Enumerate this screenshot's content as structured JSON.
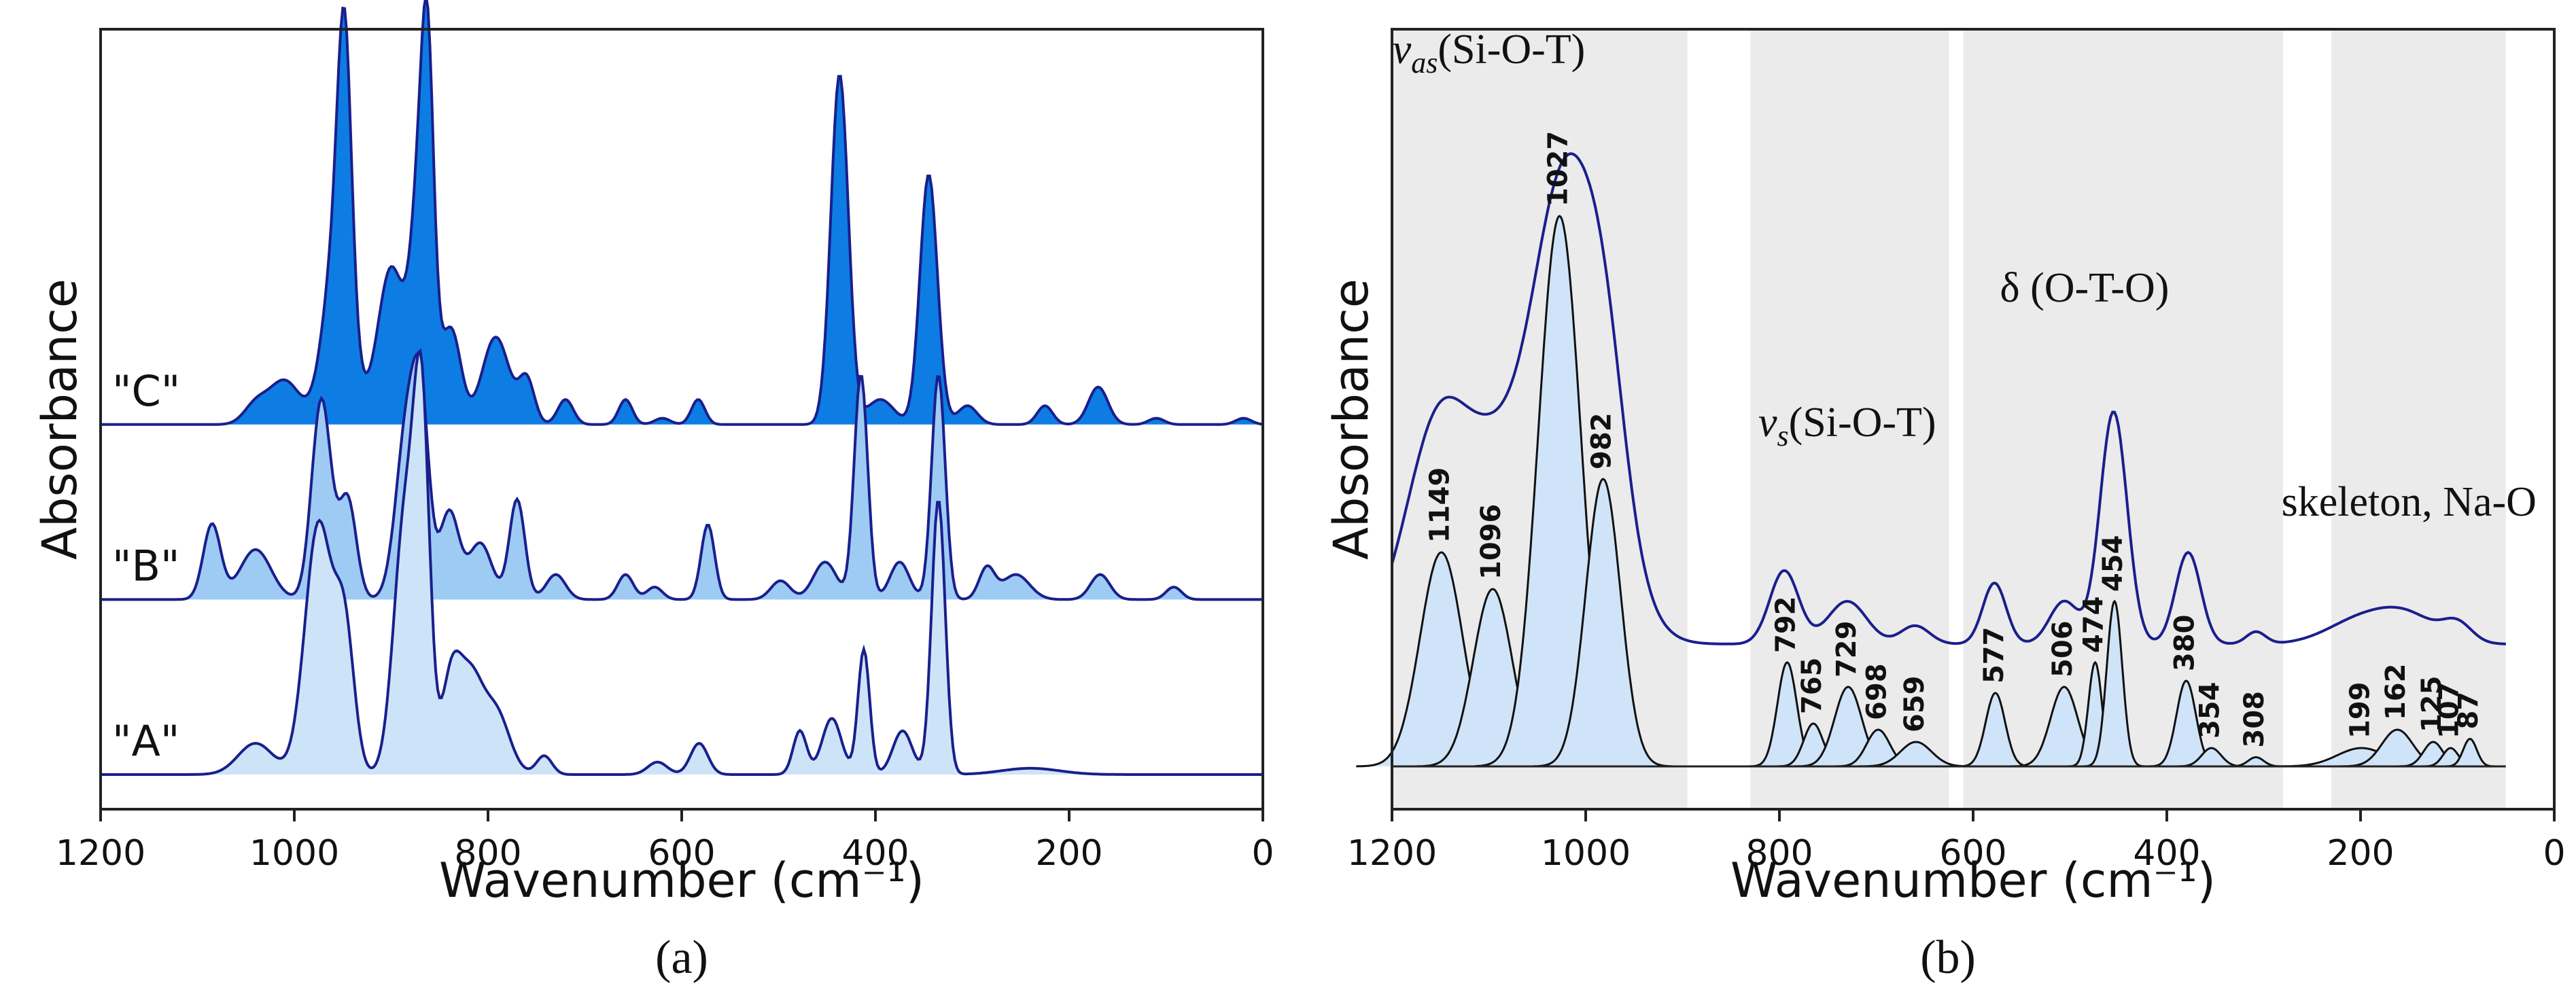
{
  "colors": {
    "line": "#1a1f8c",
    "fill_A": "#cde4f8",
    "fill_B": "#9ecbf4",
    "fill_C": "#0d7de3",
    "band": "#ebebeb",
    "fit_fill": "#cfe4f8"
  },
  "chart_data": [
    {
      "type": "line",
      "panel_label": "(a)",
      "xlabel": "Wavenumber (cm⁻¹)",
      "ylabel": "Absorbance",
      "xlim": [
        1200,
        0
      ],
      "xticks": [
        "1200",
        "1000",
        "800",
        "600",
        "400",
        "200",
        "0"
      ],
      "series": [
        {
          "name": "\"A\"",
          "label": "\"A\"",
          "baseline": 0,
          "fill": "fill_A",
          "peaks": [
            [
              1040,
              0.05,
              18
            ],
            [
              975,
              0.4,
              14
            ],
            [
              948,
              0.22,
              10
            ],
            [
              885,
              0.42,
              12
            ],
            [
              868,
              0.5,
              8
            ],
            [
              838,
              0.15,
              10
            ],
            [
              818,
              0.14,
              12
            ],
            [
              792,
              0.1,
              14
            ],
            [
              742,
              0.03,
              8
            ],
            [
              625,
              0.02,
              10
            ],
            [
              582,
              0.05,
              9
            ],
            [
              478,
              0.07,
              7
            ],
            [
              445,
              0.09,
              10
            ],
            [
              412,
              0.2,
              6
            ],
            [
              372,
              0.07,
              10
            ],
            [
              335,
              0.44,
              7
            ],
            [
              240,
              0.01,
              30
            ]
          ]
        },
        {
          "name": "\"B\"",
          "label": "\"B\"",
          "baseline": 0.28,
          "fill": "fill_B",
          "peaks": [
            [
              1085,
              0.12,
              9
            ],
            [
              1040,
              0.08,
              16
            ],
            [
              972,
              0.32,
              10
            ],
            [
              945,
              0.16,
              9
            ],
            [
              882,
              0.3,
              12
            ],
            [
              868,
              0.2,
              8
            ],
            [
              840,
              0.14,
              10
            ],
            [
              808,
              0.09,
              12
            ],
            [
              770,
              0.16,
              8
            ],
            [
              730,
              0.04,
              10
            ],
            [
              658,
              0.04,
              8
            ],
            [
              628,
              0.02,
              8
            ],
            [
              573,
              0.12,
              7
            ],
            [
              498,
              0.03,
              10
            ],
            [
              452,
              0.06,
              12
            ],
            [
              415,
              0.36,
              7
            ],
            [
              375,
              0.06,
              10
            ],
            [
              335,
              0.36,
              7
            ],
            [
              285,
              0.05,
              8
            ],
            [
              255,
              0.04,
              14
            ],
            [
              168,
              0.04,
              10
            ],
            [
              92,
              0.02,
              8
            ]
          ]
        },
        {
          "name": "\"C\"",
          "label": "\"C\"",
          "baseline": 0.56,
          "fill": "fill_C",
          "peaks": [
            [
              1040,
              0.03,
              12
            ],
            [
              1010,
              0.07,
              16
            ],
            [
              955,
              0.3,
              14
            ],
            [
              948,
              0.4,
              7
            ],
            [
              900,
              0.25,
              14
            ],
            [
              868,
              0.42,
              10
            ],
            [
              862,
              0.3,
              6
            ],
            [
              838,
              0.15,
              10
            ],
            [
              792,
              0.14,
              14
            ],
            [
              760,
              0.07,
              8
            ],
            [
              720,
              0.04,
              8
            ],
            [
              658,
              0.04,
              7
            ],
            [
              620,
              0.01,
              8
            ],
            [
              583,
              0.04,
              7
            ],
            [
              437,
              0.56,
              9
            ],
            [
              395,
              0.04,
              14
            ],
            [
              345,
              0.4,
              9
            ],
            [
              305,
              0.03,
              10
            ],
            [
              225,
              0.03,
              8
            ],
            [
              170,
              0.06,
              10
            ],
            [
              110,
              0.01,
              8
            ],
            [
              20,
              0.01,
              8
            ]
          ]
        }
      ]
    },
    {
      "type": "line",
      "panel_label": "(b)",
      "xlabel": "Wavenumber (cm⁻¹)",
      "ylabel": "Absorbance",
      "xlim": [
        1200,
        0
      ],
      "xticks": [
        "1200",
        "1000",
        "800",
        "600",
        "400",
        "200",
        "0"
      ],
      "shaded_bands": [
        [
          1200,
          895
        ],
        [
          830,
          625
        ],
        [
          610,
          280
        ],
        [
          230,
          50
        ]
      ],
      "region_labels": [
        {
          "main": "v",
          "sub": "as",
          "tail": "(Si-O-T)",
          "italic_sub": true,
          "x": 1100,
          "y": 1.15
        },
        {
          "main": "v",
          "sub": "s",
          "tail": "(Si-O-T)",
          "italic_sub": false,
          "x": 730,
          "y": 0.54
        },
        {
          "main": "δ (O-T-O)",
          "sub": "",
          "tail": "",
          "italic_sub": false,
          "x": 485,
          "y": 0.76
        },
        {
          "main": "skeleton, Na-O",
          "sub": "",
          "tail": "",
          "italic_sub": false,
          "x": 150,
          "y": 0.41
        }
      ],
      "envelope": {
        "baseline": 0.2,
        "x_range": [
          1200,
          50
        ],
        "peaks": [
          [
            1149,
            0.38,
            35
          ],
          [
            1096,
            0.13,
            25
          ],
          [
            1020,
            0.78,
            40
          ],
          [
            978,
            0.15,
            20
          ],
          [
            795,
            0.12,
            15
          ],
          [
            730,
            0.07,
            20
          ],
          [
            660,
            0.03,
            15
          ],
          [
            578,
            0.1,
            12
          ],
          [
            506,
            0.07,
            15
          ],
          [
            455,
            0.38,
            14
          ],
          [
            378,
            0.15,
            13
          ],
          [
            308,
            0.02,
            10
          ],
          [
            199,
            0.04,
            35
          ],
          [
            150,
            0.04,
            30
          ],
          [
            100,
            0.03,
            15
          ]
        ]
      },
      "fitted_peaks": [
        {
          "label": "1149",
          "center": 1149,
          "height": 0.35,
          "width": 22
        },
        {
          "label": "1096",
          "center": 1096,
          "height": 0.29,
          "width": 20
        },
        {
          "label": "1027",
          "center": 1027,
          "height": 0.9,
          "width": 22
        },
        {
          "label": "982",
          "center": 982,
          "height": 0.47,
          "width": 18
        },
        {
          "label": "792",
          "center": 792,
          "height": 0.17,
          "width": 10
        },
        {
          "label": "765",
          "center": 765,
          "height": 0.07,
          "width": 10
        },
        {
          "label": "729",
          "center": 729,
          "height": 0.13,
          "width": 14
        },
        {
          "label": "698",
          "center": 698,
          "height": 0.06,
          "width": 12
        },
        {
          "label": "659",
          "center": 659,
          "height": 0.04,
          "width": 16
        },
        {
          "label": "577",
          "center": 577,
          "height": 0.12,
          "width": 10
        },
        {
          "label": "506",
          "center": 506,
          "height": 0.13,
          "width": 14
        },
        {
          "label": "474",
          "center": 474,
          "height": 0.17,
          "width": 7
        },
        {
          "label": "454",
          "center": 454,
          "height": 0.27,
          "width": 8
        },
        {
          "label": "380",
          "center": 380,
          "height": 0.14,
          "width": 10
        },
        {
          "label": "354",
          "center": 354,
          "height": 0.03,
          "width": 10
        },
        {
          "label": "308",
          "center": 308,
          "height": 0.015,
          "width": 8
        },
        {
          "label": "199",
          "center": 199,
          "height": 0.03,
          "width": 25
        },
        {
          "label": "162",
          "center": 162,
          "height": 0.06,
          "width": 16
        },
        {
          "label": "125",
          "center": 125,
          "height": 0.04,
          "width": 10
        },
        {
          "label": "107",
          "center": 107,
          "height": 0.03,
          "width": 8
        },
        {
          "label": "87",
          "center": 87,
          "height": 0.045,
          "width": 7
        }
      ]
    }
  ]
}
